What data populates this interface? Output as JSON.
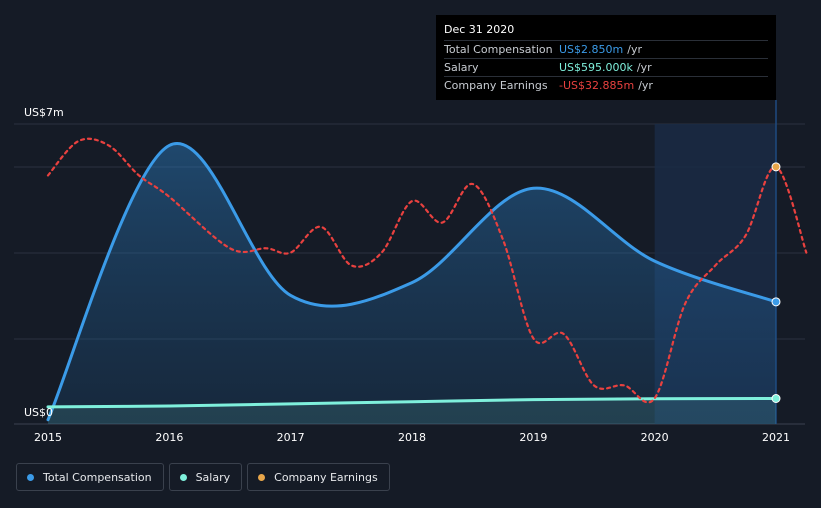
{
  "tooltip": {
    "date": "Dec 31 2020",
    "rows": [
      {
        "label": "Total Compensation",
        "value": "US$2.850m",
        "unit": "/yr",
        "color": "#3b9be8"
      },
      {
        "label": "Salary",
        "value": "US$595.000k",
        "unit": "/yr",
        "color": "#7ff0dc"
      },
      {
        "label": "Company Earnings",
        "value": "-US$32.885m",
        "unit": "/yr",
        "color": "#e8413f"
      }
    ]
  },
  "legend": [
    {
      "label": "Total Compensation",
      "color": "#3b9be8"
    },
    {
      "label": "Salary",
      "color": "#7ff0dc"
    },
    {
      "label": "Company Earnings",
      "color": "#e8a64a"
    }
  ],
  "chart_data": {
    "type": "line",
    "x_ticks": [
      "2015",
      "2016",
      "2017",
      "2018",
      "2019",
      "2020",
      "2021"
    ],
    "y_tick_labels": {
      "top": "US$7m",
      "bottom": "US$0"
    },
    "ylim": [
      0,
      7
    ],
    "xlim": [
      2015.0,
      2021.25
    ],
    "highlight_from": 2020.0,
    "series": [
      {
        "name": "Total Compensation",
        "color": "#3b9be8",
        "fill": true,
        "points": [
          [
            2015.0,
            0.1
          ],
          [
            2016.0,
            6.5
          ],
          [
            2017.0,
            3.0
          ],
          [
            2018.0,
            3.3
          ],
          [
            2019.0,
            5.5
          ],
          [
            2020.0,
            3.8
          ],
          [
            2021.0,
            2.85
          ]
        ]
      },
      {
        "name": "Salary",
        "color": "#7ff0dc",
        "fill": true,
        "points": [
          [
            2015.0,
            0.4
          ],
          [
            2016.0,
            0.42
          ],
          [
            2017.0,
            0.47
          ],
          [
            2018.0,
            0.52
          ],
          [
            2019.0,
            0.57
          ],
          [
            2020.0,
            0.59
          ],
          [
            2021.0,
            0.595
          ]
        ]
      },
      {
        "name": "Company Earnings",
        "color": "#e8413f",
        "dashed": true,
        "end_marker_color": "#e8a64a",
        "points": [
          [
            2015.0,
            5.8
          ],
          [
            2015.25,
            6.6
          ],
          [
            2015.5,
            6.5
          ],
          [
            2015.75,
            5.8
          ],
          [
            2016.0,
            5.3
          ],
          [
            2016.5,
            4.1
          ],
          [
            2016.8,
            4.1
          ],
          [
            2017.0,
            4.0
          ],
          [
            2017.25,
            4.6
          ],
          [
            2017.5,
            3.7
          ],
          [
            2017.75,
            4.0
          ],
          [
            2018.0,
            5.2
          ],
          [
            2018.25,
            4.7
          ],
          [
            2018.5,
            5.6
          ],
          [
            2018.75,
            4.3
          ],
          [
            2019.0,
            2.0
          ],
          [
            2019.25,
            2.1
          ],
          [
            2019.5,
            0.9
          ],
          [
            2019.75,
            0.9
          ],
          [
            2020.0,
            0.6
          ],
          [
            2020.25,
            2.8
          ],
          [
            2020.5,
            3.7
          ],
          [
            2020.75,
            4.4
          ],
          [
            2021.0,
            6.0
          ],
          [
            2021.25,
            4.0
          ]
        ]
      }
    ]
  }
}
